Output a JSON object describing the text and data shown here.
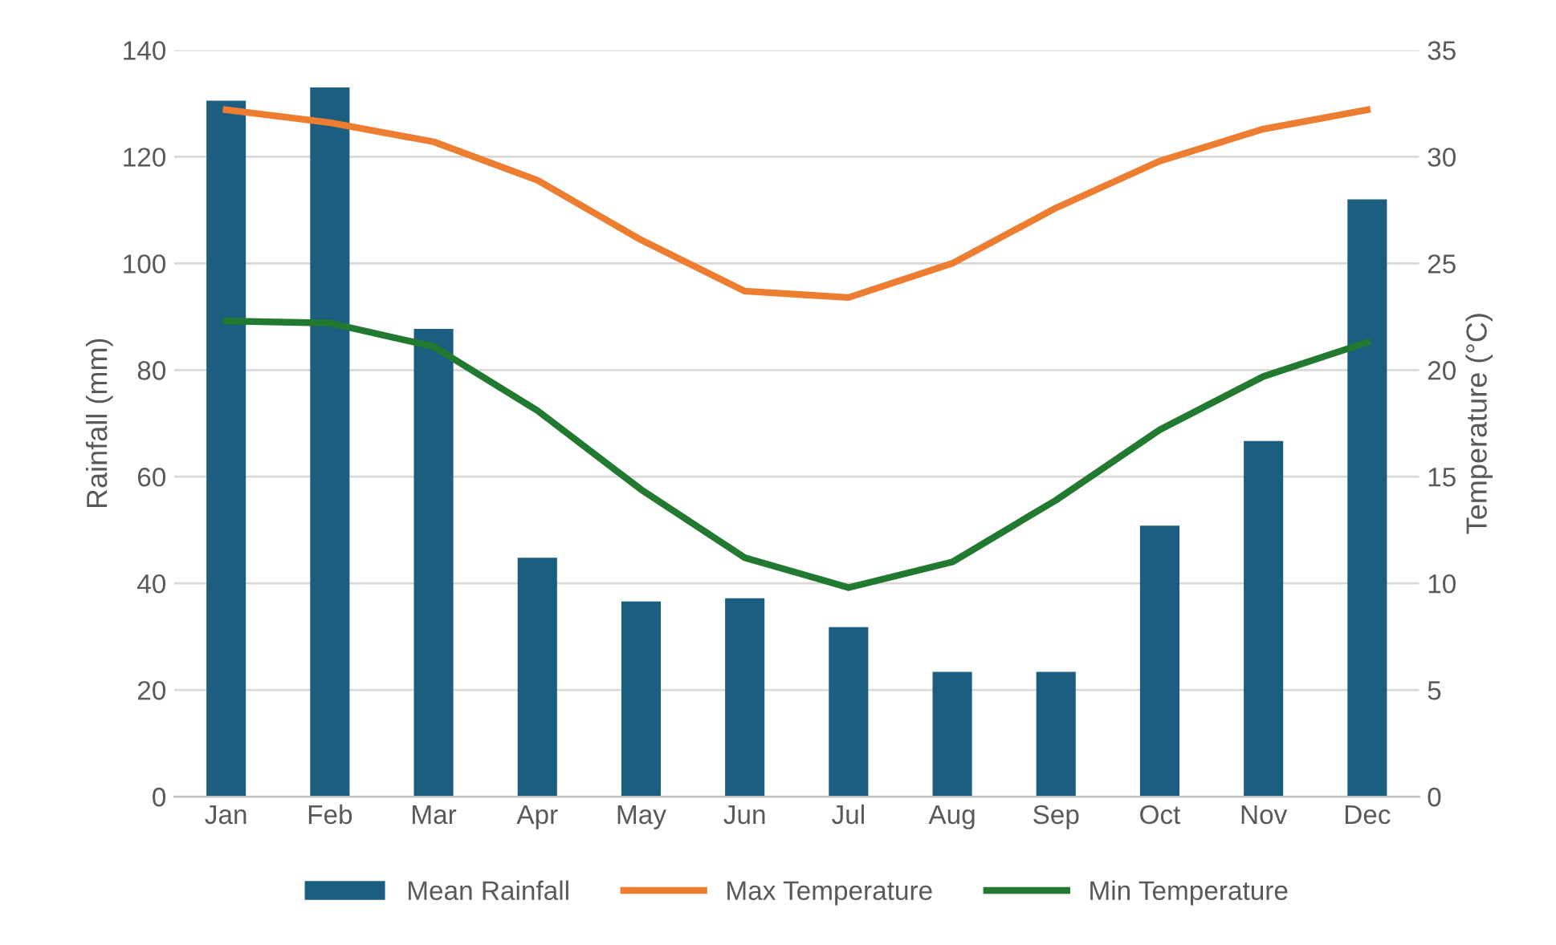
{
  "chart_data": {
    "type": "bar",
    "categories": [
      "Jan",
      "Feb",
      "Mar",
      "Apr",
      "May",
      "Jun",
      "Jul",
      "Aug",
      "Sep",
      "Oct",
      "Nov",
      "Dec"
    ],
    "series": [
      {
        "name": "Mean Rainfall",
        "color": "#1b5e80",
        "values": [
          130.5,
          133,
          87.7,
          44.8,
          36.6,
          37.2,
          31.8,
          23.4,
          23.4,
          50.8,
          66.7,
          112
        ]
      },
      {
        "name": "Max Temperature",
        "type": "line",
        "axis": "y2",
        "color": "#ed7d31",
        "values": [
          32.2,
          31.6,
          30.7,
          28.9,
          26.1,
          23.7,
          23.4,
          25.0,
          27.6,
          29.8,
          31.3,
          32.2
        ]
      },
      {
        "name": "Min Temperature",
        "type": "line",
        "axis": "y2",
        "color": "#217a2f",
        "values": [
          22.3,
          22.2,
          21.1,
          18.1,
          14.4,
          11.2,
          9.8,
          11.0,
          13.9,
          17.2,
          19.7,
          21.3
        ]
      }
    ],
    "ylabel": "Rainfall (mm)",
    "y2label": "Temperature (°C)",
    "ylim": [
      0,
      140
    ],
    "yticks": [
      0,
      20,
      40,
      60,
      80,
      100,
      120,
      140
    ],
    "y2lim": [
      0,
      35
    ],
    "y2ticks": [
      0,
      5,
      10,
      15,
      20,
      25,
      30,
      35
    ],
    "grid": "y",
    "legend": "bottom",
    "marker": "none",
    "line_style": "solid"
  }
}
